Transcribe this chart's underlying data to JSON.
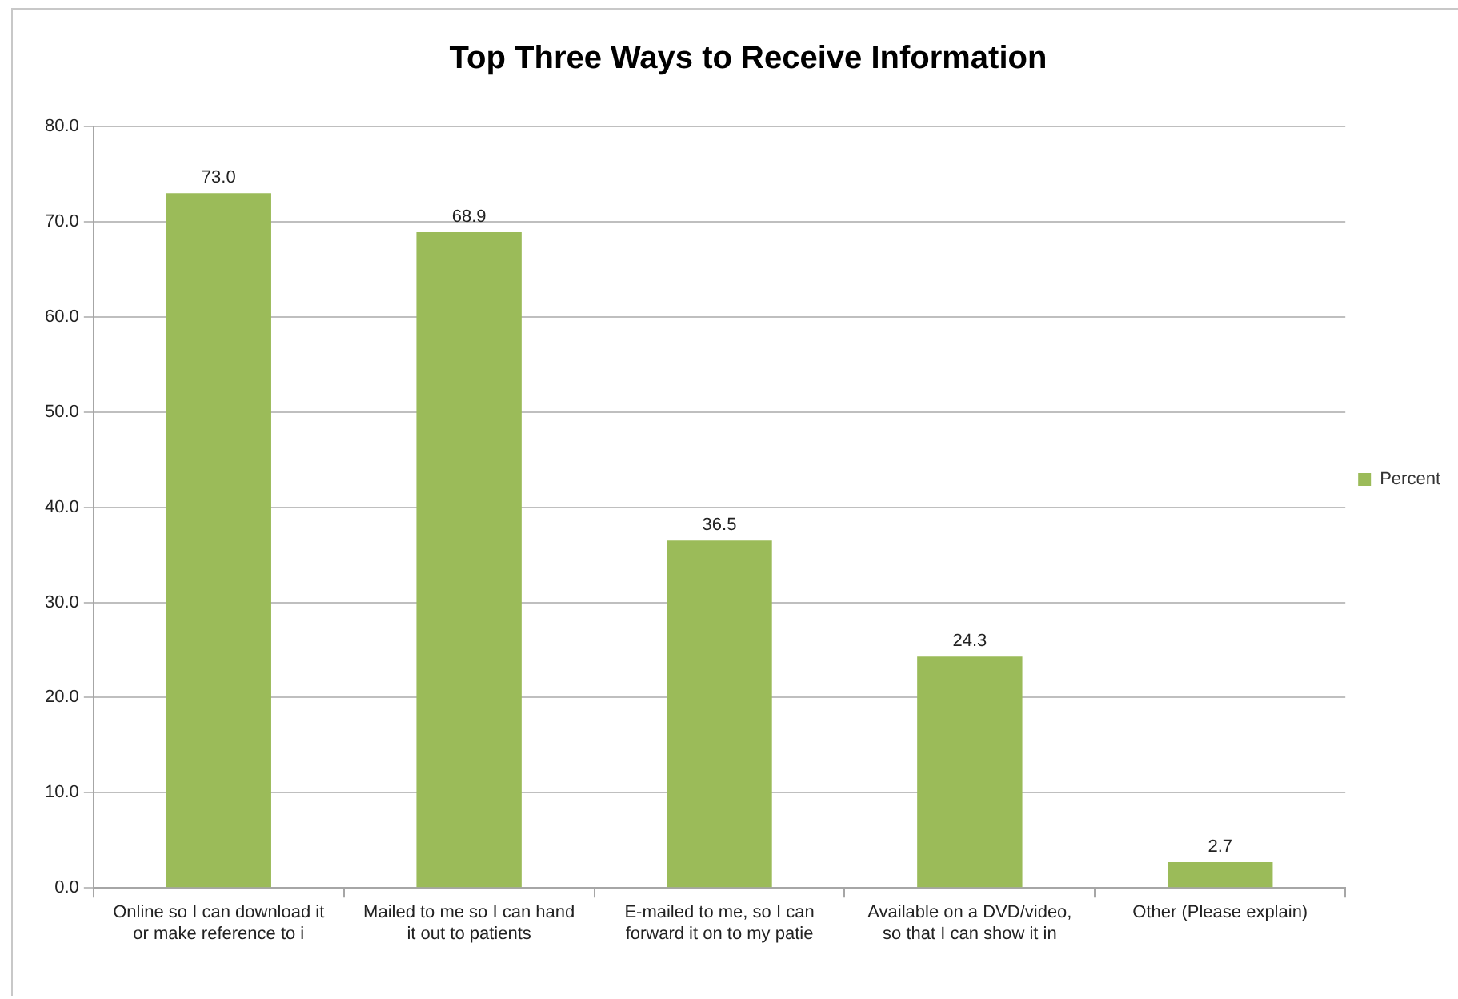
{
  "chart_data": {
    "type": "bar",
    "title": "Top Three Ways to Receive Information",
    "categories": [
      "Online so I can download it or make reference to i",
      "Mailed to me so I can hand it out to patients",
      "E-mailed to me, so I can forward it on to my patie",
      "Available on a DVD/video, so that I can show it in",
      "Other (Please explain)"
    ],
    "series": [
      {
        "name": "Percent",
        "color": "#9bbb59",
        "values": [
          73.0,
          68.9,
          36.5,
          24.3,
          2.7
        ],
        "value_labels": [
          "73.0",
          "68.9",
          "36.5",
          "24.3",
          "2.7"
        ]
      }
    ],
    "ylim": [
      0,
      80
    ],
    "yticks": [
      {
        "value": 0,
        "label": "0.0"
      },
      {
        "value": 10,
        "label": "10.0"
      },
      {
        "value": 20,
        "label": "20.0"
      },
      {
        "value": 30,
        "label": "30.0"
      },
      {
        "value": 40,
        "label": "40.0"
      },
      {
        "value": 50,
        "label": "50.0"
      },
      {
        "value": 60,
        "label": "60.0"
      },
      {
        "value": 70,
        "label": "70.0"
      },
      {
        "value": 80,
        "label": "80.0"
      }
    ],
    "grid": "y",
    "legend": "right"
  }
}
